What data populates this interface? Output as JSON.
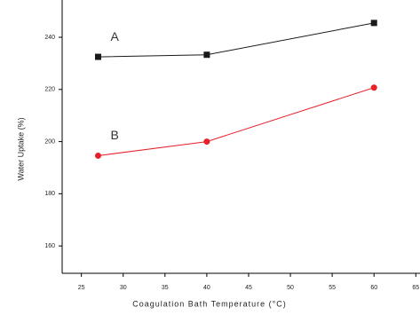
{
  "chart_data": {
    "type": "line",
    "x_label": "Coagulation Bath Temperature (°C)",
    "y_label": "Water Uptake (%)",
    "x": [
      27,
      40,
      60
    ],
    "series": [
      {
        "name": "A",
        "color": "#1a1a1a",
        "marker": "square",
        "values": [
          232.5,
          233.3,
          245.5
        ]
      },
      {
        "name": "B",
        "color": "#e8202a",
        "marker": "circle",
        "values": [
          194.6,
          200,
          220.7
        ]
      }
    ],
    "xlim": [
      22.7,
      65.5
    ],
    "xticks": [
      25,
      30,
      35,
      40,
      45,
      50,
      55,
      60,
      65
    ],
    "ylim": [
      149.5,
      254.3
    ],
    "yticks": [
      160,
      180,
      200,
      220,
      240
    ],
    "grid": false
  }
}
